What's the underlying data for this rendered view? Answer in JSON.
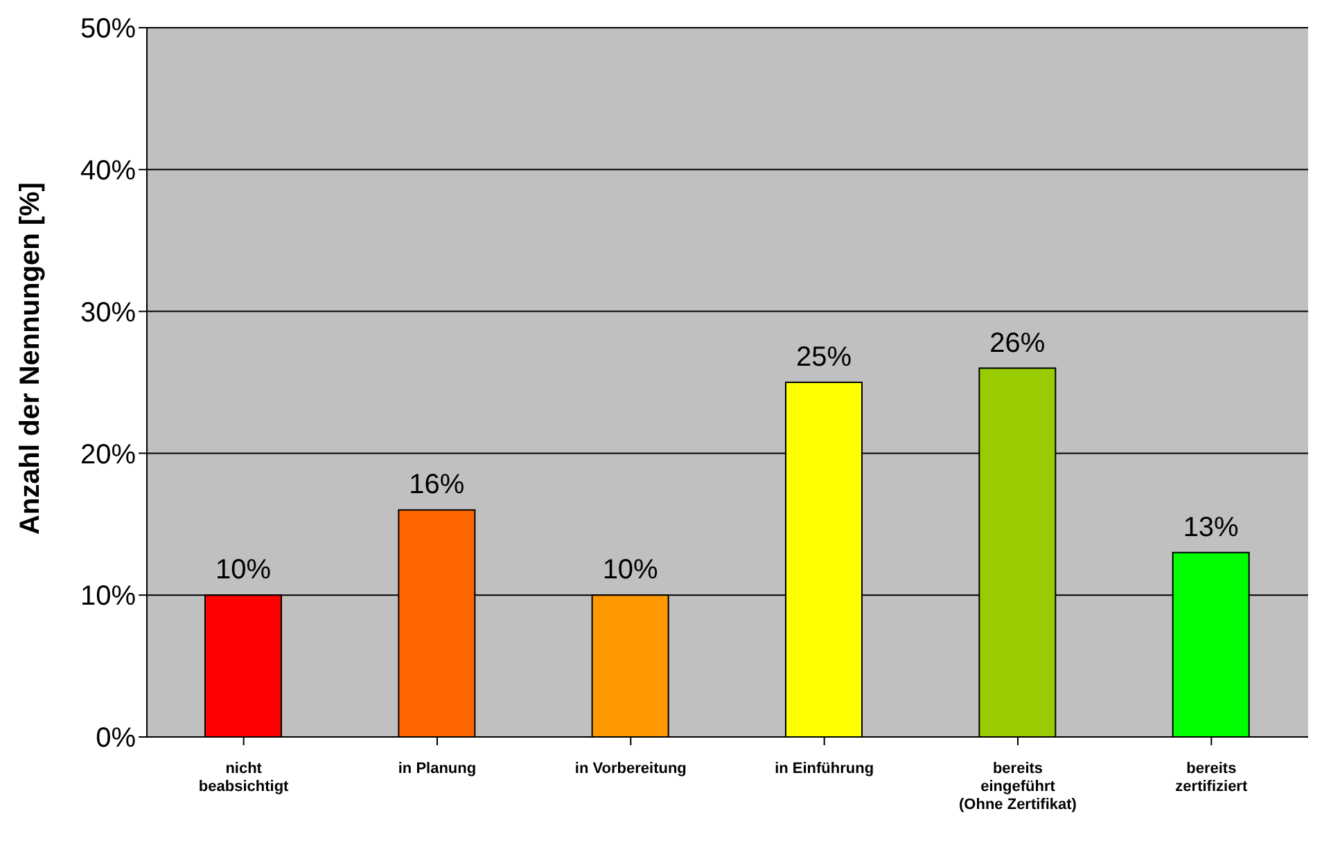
{
  "chart_data": {
    "type": "bar",
    "ylabel": "Anzahl der Nennungen [%]",
    "categories": [
      "nicht beabsichtigt",
      "in Planung",
      "in Vorbereitung",
      "in Einführung",
      "bereits eingeführt (Ohne Zertifikat)",
      "bereits zertifiziert"
    ],
    "values": [
      10,
      16,
      10,
      25,
      26,
      13
    ],
    "colors": [
      "#ff0000",
      "#ff6600",
      "#ff9900",
      "#ffff00",
      "#99cc00",
      "#00ff00"
    ],
    "value_labels": [
      "10%",
      "16%",
      "10%",
      "25%",
      "26%",
      "13%"
    ],
    "ylim": [
      0,
      50
    ],
    "yticks": [
      {
        "value": 0,
        "label": "0%"
      },
      {
        "value": 10,
        "label": "10%"
      },
      {
        "value": 20,
        "label": "20%"
      },
      {
        "value": 30,
        "label": "30%"
      },
      {
        "value": 40,
        "label": "40%"
      },
      {
        "value": 50,
        "label": "50%"
      }
    ],
    "grid": "y",
    "legend": false
  }
}
